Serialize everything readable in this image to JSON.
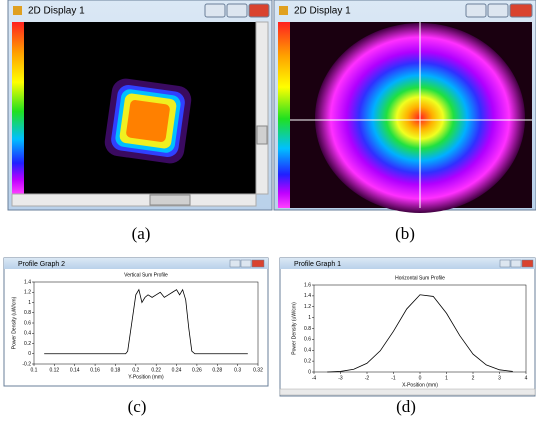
{
  "windows": [
    {
      "title": "2D Display 1"
    },
    {
      "title": "2D Display 1"
    },
    {
      "title": "Profile Graph 2"
    },
    {
      "title": "Profile Graph 1"
    }
  ],
  "captions": [
    "(a)",
    "(b)",
    "(c)",
    "(d)"
  ],
  "chart_data": [
    {
      "type": "line",
      "title": "Vertical Sum Profile",
      "x_label": "Y-Position (mm)",
      "y_label": "Power Density (uW/cm)",
      "x": [
        0.11,
        0.13,
        0.15,
        0.17,
        0.19,
        0.192,
        0.196,
        0.2,
        0.203,
        0.206,
        0.209,
        0.212,
        0.216,
        0.22,
        0.224,
        0.228,
        0.232,
        0.236,
        0.24,
        0.243,
        0.246,
        0.249,
        0.252,
        0.255,
        0.258,
        0.27,
        0.29,
        0.31
      ],
      "values": [
        0,
        0,
        0,
        0,
        0,
        0.05,
        0.6,
        1.15,
        1.25,
        1.0,
        1.1,
        1.15,
        1.1,
        1.15,
        1.2,
        1.1,
        1.15,
        1.2,
        1.25,
        1.15,
        1.25,
        1.05,
        0.5,
        0.05,
        0,
        0,
        0,
        0
      ],
      "color": "#000000",
      "xlim": [
        0.1,
        0.32
      ],
      "ylim": [
        -0.2,
        1.4
      ],
      "xticks": [
        0.1,
        0.12,
        0.14,
        0.16,
        0.18,
        0.2,
        0.22,
        0.24,
        0.26,
        0.28,
        0.3,
        0.32
      ],
      "yticks": [
        -0.2,
        0,
        0.2,
        0.4,
        0.6,
        0.8,
        1,
        1.2,
        1.4
      ]
    },
    {
      "type": "line",
      "title": "Horizontal Sum Profile",
      "x_label": "X-Position (mm)",
      "y_label": "Power Density (uW/cm)",
      "x": [
        -3.5,
        -3,
        -2.5,
        -2,
        -1.5,
        -1,
        -0.5,
        0,
        0.5,
        1,
        1.5,
        2,
        2.5,
        3,
        3.5
      ],
      "values": [
        0,
        0.01,
        0.05,
        0.16,
        0.39,
        0.75,
        1.16,
        1.42,
        1.39,
        1.08,
        0.67,
        0.33,
        0.13,
        0.04,
        0.01
      ],
      "color": "#000000",
      "xlim": [
        -4,
        4
      ],
      "ylim": [
        0,
        1.6
      ],
      "xticks": [
        -4,
        -3,
        -2,
        -1,
        0,
        1,
        2,
        3,
        4
      ],
      "yticks": [
        0,
        0.2,
        0.4,
        0.6,
        0.8,
        1,
        1.2,
        1.4,
        1.6
      ]
    }
  ]
}
